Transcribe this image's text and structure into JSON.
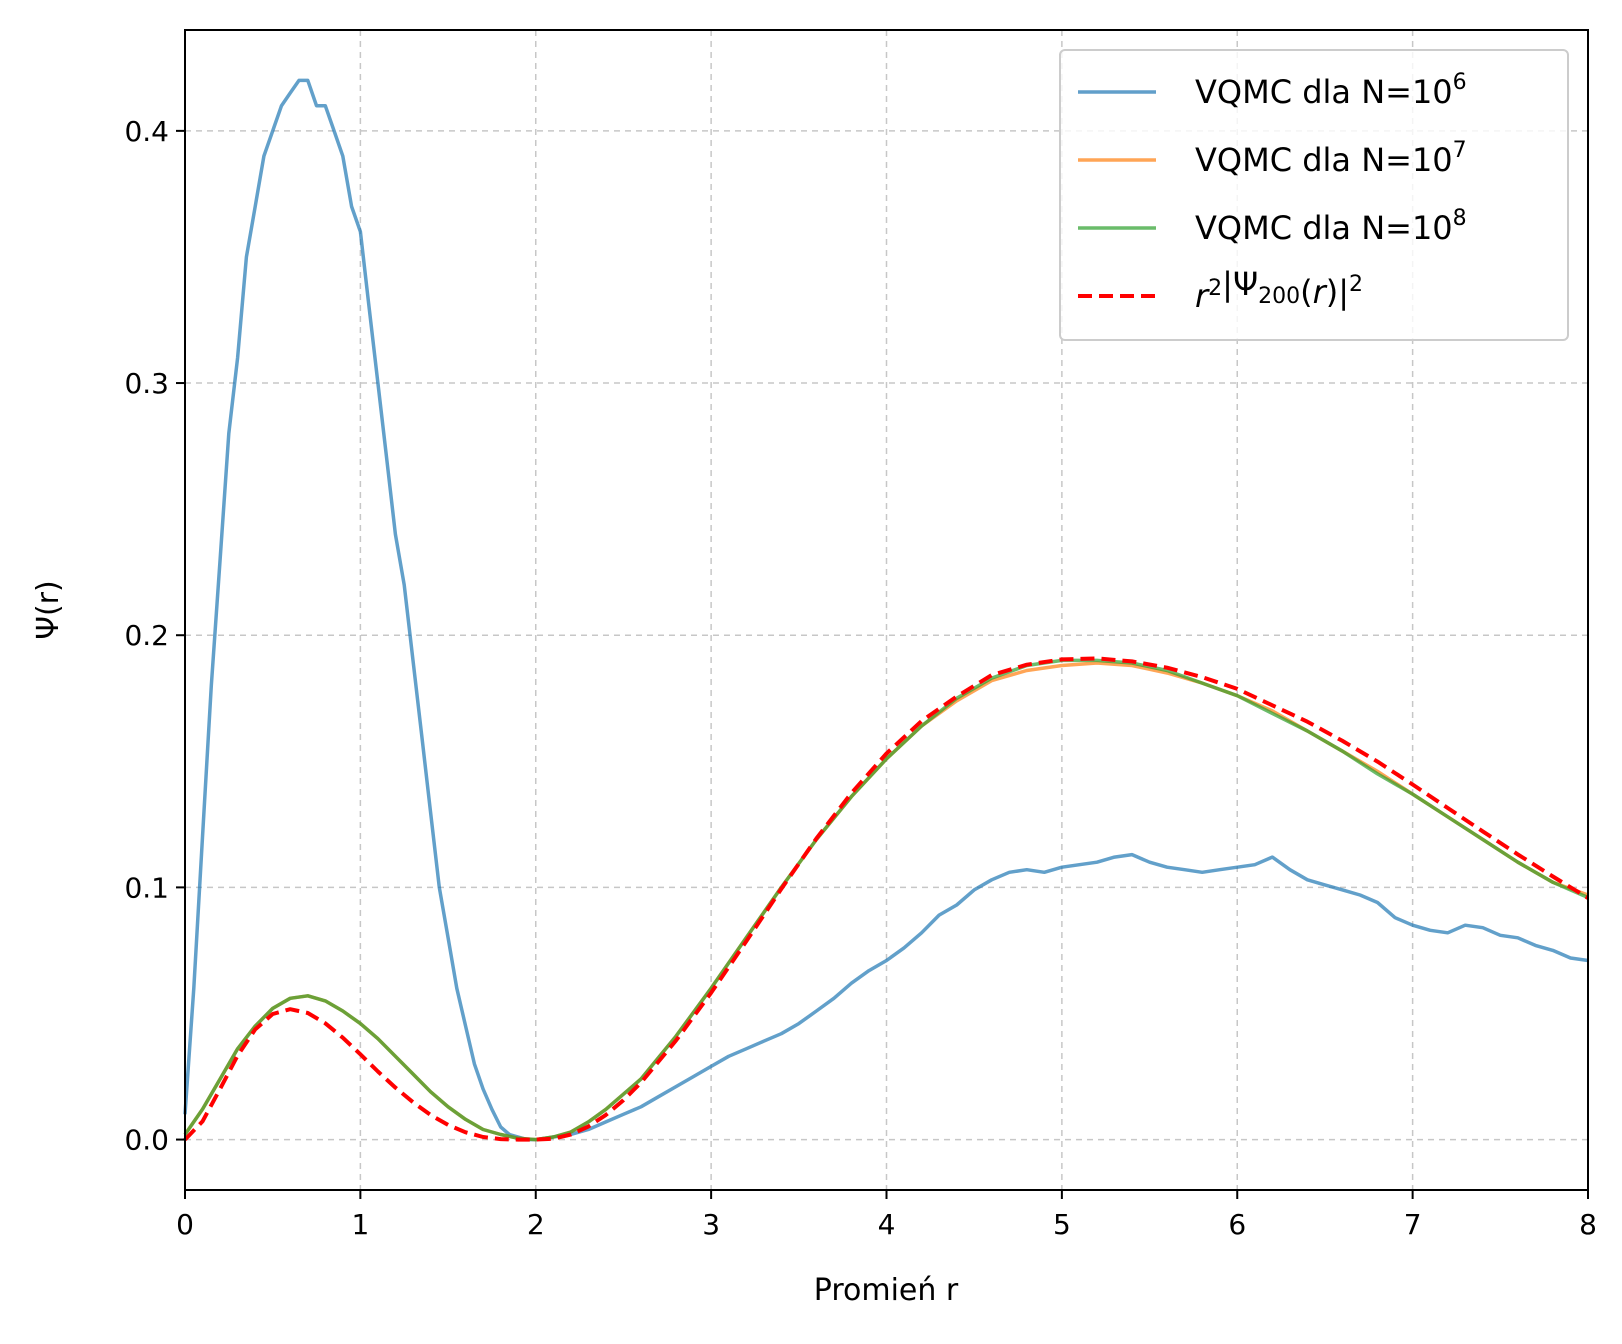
{
  "chart_data": {
    "type": "line",
    "xlabel": "Promień r",
    "ylabel": "Ψ(r)",
    "xlim": [
      0,
      8
    ],
    "ylim": [
      -0.02,
      0.44
    ],
    "xticks": [
      "0",
      "1",
      "2",
      "3",
      "4",
      "5",
      "6",
      "7",
      "8"
    ],
    "yticks": [
      "0.0",
      "0.1",
      "0.2",
      "0.3",
      "0.4"
    ],
    "grid": true,
    "legend_position": "top-right",
    "series": [
      {
        "name": "VQMC dla N=10^6",
        "legend": {
          "base": "VQMC dla N=10",
          "sup": "6"
        },
        "color": "#1f77b4",
        "style": "solid",
        "x": [
          0.0,
          0.05,
          0.1,
          0.15,
          0.2,
          0.25,
          0.3,
          0.35,
          0.4,
          0.45,
          0.5,
          0.55,
          0.6,
          0.65,
          0.7,
          0.75,
          0.8,
          0.85,
          0.9,
          0.95,
          1.0,
          1.05,
          1.1,
          1.15,
          1.2,
          1.25,
          1.3,
          1.35,
          1.4,
          1.45,
          1.5,
          1.55,
          1.6,
          1.65,
          1.7,
          1.75,
          1.8,
          1.85,
          1.9,
          1.95,
          2.0,
          2.1,
          2.2,
          2.3,
          2.4,
          2.5,
          2.6,
          2.7,
          2.8,
          2.9,
          3.0,
          3.1,
          3.2,
          3.3,
          3.4,
          3.5,
          3.6,
          3.7,
          3.8,
          3.9,
          4.0,
          4.1,
          4.2,
          4.3,
          4.4,
          4.5,
          4.6,
          4.7,
          4.8,
          4.9,
          5.0,
          5.1,
          5.2,
          5.3,
          5.4,
          5.5,
          5.6,
          5.7,
          5.8,
          5.9,
          6.0,
          6.1,
          6.2,
          6.3,
          6.4,
          6.5,
          6.6,
          6.7,
          6.8,
          6.9,
          7.0,
          7.1,
          7.2,
          7.3,
          7.4,
          7.5,
          7.6,
          7.7,
          7.8,
          7.9,
          8.0
        ],
        "y": [
          0.01,
          0.06,
          0.12,
          0.18,
          0.23,
          0.28,
          0.31,
          0.35,
          0.37,
          0.39,
          0.4,
          0.41,
          0.415,
          0.42,
          0.42,
          0.41,
          0.41,
          0.4,
          0.39,
          0.37,
          0.36,
          0.33,
          0.3,
          0.27,
          0.24,
          0.22,
          0.19,
          0.16,
          0.13,
          0.1,
          0.08,
          0.06,
          0.045,
          0.03,
          0.02,
          0.012,
          0.005,
          0.002,
          0.001,
          0.0,
          0.0,
          0.001,
          0.002,
          0.004,
          0.007,
          0.01,
          0.013,
          0.017,
          0.021,
          0.025,
          0.029,
          0.033,
          0.036,
          0.039,
          0.042,
          0.046,
          0.051,
          0.056,
          0.062,
          0.067,
          0.071,
          0.076,
          0.082,
          0.089,
          0.093,
          0.099,
          0.103,
          0.106,
          0.107,
          0.106,
          0.108,
          0.109,
          0.11,
          0.112,
          0.113,
          0.11,
          0.108,
          0.107,
          0.106,
          0.107,
          0.108,
          0.109,
          0.112,
          0.107,
          0.103,
          0.101,
          0.099,
          0.097,
          0.094,
          0.088,
          0.085,
          0.083,
          0.082,
          0.085,
          0.084,
          0.081,
          0.08,
          0.077,
          0.075,
          0.072,
          0.071
        ]
      },
      {
        "name": "VQMC dla N=10^7",
        "legend": {
          "base": "VQMC dla N=10",
          "sup": "7"
        },
        "color": "#ff7f0e",
        "style": "solid",
        "x": [
          0.0,
          0.1,
          0.2,
          0.3,
          0.4,
          0.5,
          0.6,
          0.7,
          0.8,
          0.9,
          1.0,
          1.1,
          1.2,
          1.3,
          1.4,
          1.5,
          1.6,
          1.7,
          1.8,
          1.9,
          2.0,
          2.1,
          2.2,
          2.3,
          2.4,
          2.5,
          2.6,
          2.8,
          3.0,
          3.2,
          3.4,
          3.6,
          3.8,
          4.0,
          4.2,
          4.4,
          4.6,
          4.8,
          5.0,
          5.2,
          5.4,
          5.6,
          5.8,
          6.0,
          6.2,
          6.4,
          6.6,
          6.8,
          7.0,
          7.2,
          7.4,
          7.6,
          7.8,
          8.0
        ],
        "y": [
          0.002,
          0.012,
          0.024,
          0.036,
          0.045,
          0.052,
          0.056,
          0.057,
          0.055,
          0.051,
          0.046,
          0.04,
          0.033,
          0.026,
          0.019,
          0.013,
          0.008,
          0.004,
          0.002,
          0.0005,
          0.0,
          0.001,
          0.003,
          0.007,
          0.012,
          0.018,
          0.024,
          0.041,
          0.06,
          0.08,
          0.1,
          0.119,
          0.136,
          0.151,
          0.164,
          0.174,
          0.182,
          0.186,
          0.188,
          0.189,
          0.188,
          0.185,
          0.181,
          0.176,
          0.17,
          0.162,
          0.154,
          0.146,
          0.137,
          0.128,
          0.119,
          0.11,
          0.102,
          0.097
        ]
      },
      {
        "name": "VQMC dla N=10^8",
        "legend": {
          "base": "VQMC dla N=10",
          "sup": "8"
        },
        "color": "#2ca02c",
        "style": "solid",
        "x": [
          0.0,
          0.1,
          0.2,
          0.3,
          0.4,
          0.5,
          0.6,
          0.7,
          0.8,
          0.9,
          1.0,
          1.1,
          1.2,
          1.3,
          1.4,
          1.5,
          1.6,
          1.7,
          1.8,
          1.9,
          2.0,
          2.1,
          2.2,
          2.3,
          2.4,
          2.5,
          2.6,
          2.8,
          3.0,
          3.2,
          3.4,
          3.6,
          3.8,
          4.0,
          4.2,
          4.4,
          4.6,
          4.8,
          5.0,
          5.2,
          5.4,
          5.6,
          5.8,
          6.0,
          6.2,
          6.4,
          6.6,
          6.8,
          7.0,
          7.2,
          7.4,
          7.6,
          7.8,
          8.0
        ],
        "y": [
          0.002,
          0.012,
          0.024,
          0.036,
          0.045,
          0.052,
          0.056,
          0.057,
          0.055,
          0.051,
          0.046,
          0.04,
          0.033,
          0.026,
          0.019,
          0.013,
          0.008,
          0.004,
          0.002,
          0.0005,
          0.0,
          0.001,
          0.003,
          0.007,
          0.012,
          0.018,
          0.024,
          0.041,
          0.06,
          0.08,
          0.1,
          0.119,
          0.136,
          0.151,
          0.164,
          0.175,
          0.183,
          0.188,
          0.19,
          0.19,
          0.189,
          0.186,
          0.181,
          0.176,
          0.169,
          0.162,
          0.154,
          0.145,
          0.137,
          0.128,
          0.119,
          0.11,
          0.102,
          0.096
        ]
      },
      {
        "name": "r^2|Ψ200(r)|^2",
        "legend": {
          "latex": true
        },
        "color": "#ff0000",
        "style": "dashed",
        "x": [
          0.0,
          0.1,
          0.2,
          0.3,
          0.4,
          0.5,
          0.6,
          0.7,
          0.8,
          0.9,
          1.0,
          1.1,
          1.2,
          1.3,
          1.4,
          1.5,
          1.6,
          1.7,
          1.8,
          1.9,
          2.0,
          2.1,
          2.2,
          2.3,
          2.4,
          2.5,
          2.6,
          2.8,
          3.0,
          3.2,
          3.4,
          3.6,
          3.8,
          4.0,
          4.2,
          4.4,
          4.6,
          4.8,
          5.0,
          5.2,
          5.4,
          5.6,
          5.8,
          6.0,
          6.2,
          6.4,
          6.6,
          6.8,
          7.0,
          7.2,
          7.4,
          7.6,
          7.8,
          8.0
        ],
        "y": [
          0.0,
          0.0072,
          0.0201,
          0.0333,
          0.0437,
          0.0498,
          0.0517,
          0.0502,
          0.0461,
          0.0404,
          0.0338,
          0.027,
          0.0206,
          0.0148,
          0.0098,
          0.0058,
          0.0029,
          0.001,
          0.0002,
          0.0,
          0.0,
          0.0003,
          0.002,
          0.0052,
          0.0098,
          0.0156,
          0.0226,
          0.0393,
          0.0582,
          0.0786,
          0.0994,
          0.1194,
          0.1374,
          0.1531,
          0.166,
          0.1757,
          0.1842,
          0.1883,
          0.1904,
          0.1908,
          0.1896,
          0.1871,
          0.1834,
          0.1787,
          0.1722,
          0.1657,
          0.1581,
          0.1499,
          0.1408,
          0.1315,
          0.1222,
          0.1131,
          0.1043,
          0.0958
        ]
      }
    ]
  }
}
